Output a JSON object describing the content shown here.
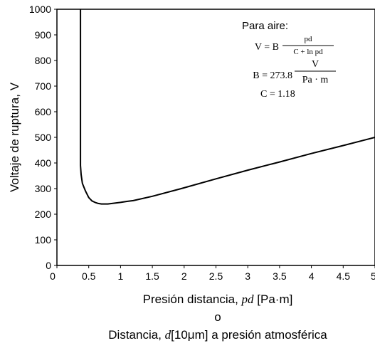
{
  "chart_data": {
    "type": "line",
    "ylabel": "Voltaje de ruptura, V",
    "xlabel_line1_prefix": "Presión distancia, ",
    "xlabel_line1_var": "pd",
    "xlabel_line1_unit": " [Pa·m]",
    "xlabel_line2": "o",
    "xlabel_line3_prefix": "Distancia, ",
    "xlabel_line3_var": "d",
    "xlabel_line3_unit": "[10μm]",
    "xlabel_line3_suffix": " a presión atmosférica",
    "xlim": [
      0,
      5
    ],
    "ylim": [
      0,
      1000
    ],
    "x_ticks": [
      "0",
      "0.5",
      "1",
      "1.5",
      "2",
      "2.5",
      "3",
      "3.5",
      "4",
      "4.5",
      "5"
    ],
    "y_ticks": [
      "0",
      "100",
      "200",
      "300",
      "400",
      "500",
      "600",
      "700",
      "800",
      "900",
      "1000"
    ],
    "series": [
      {
        "x": [
          0.37,
          0.37,
          0.38,
          0.4,
          0.45,
          0.5,
          0.55,
          0.6,
          0.65,
          0.7,
          0.75,
          0.8,
          0.9,
          1.0,
          1.1,
          1.2,
          1.5,
          2.0,
          2.5,
          3.0,
          3.5,
          4.0,
          4.5,
          5.0
        ],
        "y": [
          1000,
          390,
          355,
          320,
          290,
          265,
          252,
          246,
          242,
          240,
          240,
          240,
          243,
          246,
          250,
          253,
          270,
          303,
          338,
          372,
          404,
          437,
          468,
          500
        ]
      }
    ],
    "annotation": {
      "title": "Para aire:",
      "formula_v": "V = B",
      "formula_v_num": "pd",
      "formula_v_den": "C + ln pd",
      "formula_b": "B = 273.8",
      "formula_b_num": "V",
      "formula_b_den": "Pa · m",
      "formula_c": "C = 1.18"
    },
    "grid": false,
    "line_color": "#000000"
  }
}
